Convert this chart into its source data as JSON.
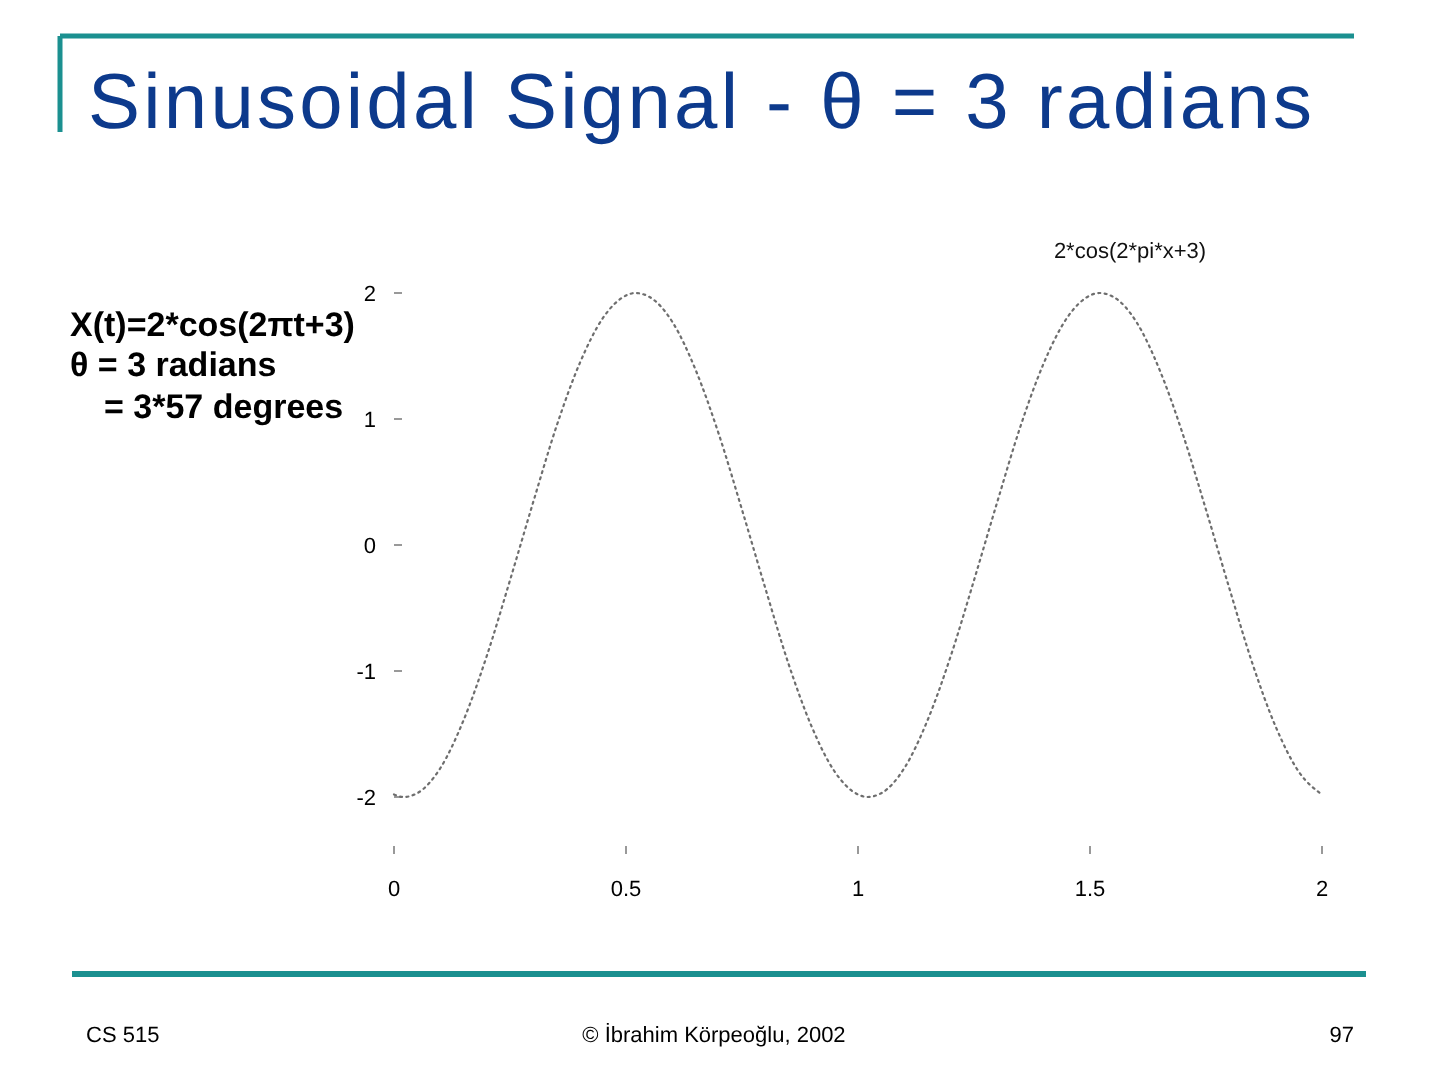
{
  "chart_data": {
    "type": "line",
    "title": "Sinusoidal Signal - θ = 3 radians",
    "subtitle": "2*cos(2*pi*x+3)",
    "annotations": [
      "X(t)=2*cos(2πt+3)",
      "θ = 3 radians",
      "= 3*57 degrees",
      "CS 515",
      "© İbrahim Körpeoğlu, 2002",
      "97"
    ],
    "x": [
      0,
      0.02,
      0.05,
      0.1,
      0.15,
      0.2,
      0.25,
      0.3,
      0.35,
      0.4,
      0.45,
      0.5,
      0.52,
      0.55,
      0.6,
      0.65,
      0.7,
      0.75,
      0.8,
      0.85,
      0.9,
      0.95,
      1,
      1.02,
      1.05,
      1.1,
      1.15,
      1.2,
      1.25,
      1.3,
      1.35,
      1.4,
      1.45,
      1.5,
      1.52,
      1.55,
      1.6,
      1.65,
      1.7,
      1.75,
      1.8,
      1.85,
      1.9,
      1.95,
      2
    ],
    "series": [
      {
        "color": "#6e6e6e",
        "values": [
          -1.98,
          -2,
          -1.97,
          -1.77,
          -1.39,
          -0.88,
          -0.28,
          0.34,
          0.94,
          1.44,
          1.8,
          1.98,
          2,
          1.97,
          1.77,
          1.39,
          0.88,
          0.28,
          -0.34,
          -0.94,
          -1.44,
          -1.8,
          -1.98,
          -2,
          -1.97,
          -1.77,
          -1.39,
          -0.88,
          -0.28,
          0.34,
          0.94,
          1.44,
          1.8,
          1.98,
          2,
          1.97,
          1.77,
          1.39,
          0.88,
          0.28,
          -0.34,
          -0.94,
          -1.44,
          -1.8,
          -1.98
        ]
      }
    ],
    "xlim": [
      0,
      2
    ],
    "ylim": [
      -2,
      2
    ],
    "xticks": [
      0,
      0.5,
      1,
      1.5,
      2
    ],
    "yticks": [
      -2,
      -1,
      0,
      1,
      2
    ],
    "line_style": "dotted"
  }
}
